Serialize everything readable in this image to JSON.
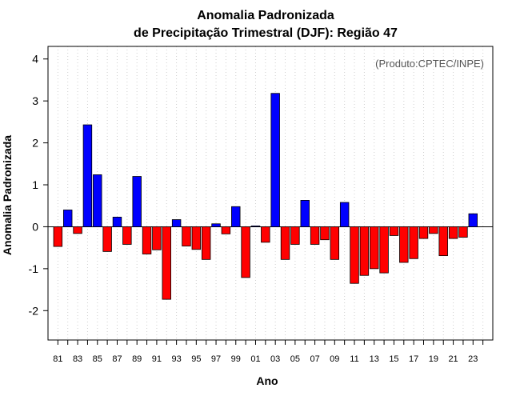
{
  "chart_data": {
    "type": "bar",
    "title": [
      "Anomalia Padronizada",
      "de Precipitação Trimestral (DJF): Região 47"
    ],
    "xlabel": "Ano",
    "ylabel": "Anomalia Padronizada",
    "annotation": "(Produto:CPTEC/INPE)",
    "ylim": [
      -2.7,
      4.3
    ],
    "yticks": [
      -2,
      -1,
      0,
      1,
      2,
      3,
      4
    ],
    "xlim": [
      1980,
      2025
    ],
    "x_tick_labels": [
      {
        "year": 1981,
        "label": "81"
      },
      {
        "year": 1983,
        "label": "83"
      },
      {
        "year": 1985,
        "label": "85"
      },
      {
        "year": 1987,
        "label": "87"
      },
      {
        "year": 1989,
        "label": "89"
      },
      {
        "year": 1991,
        "label": "91"
      },
      {
        "year": 1993,
        "label": "93"
      },
      {
        "year": 1995,
        "label": "95"
      },
      {
        "year": 1997,
        "label": "97"
      },
      {
        "year": 1999,
        "label": "99"
      },
      {
        "year": 2001,
        "label": "01"
      },
      {
        "year": 2003,
        "label": "03"
      },
      {
        "year": 2005,
        "label": "05"
      },
      {
        "year": 2007,
        "label": "07"
      },
      {
        "year": 2009,
        "label": "09"
      },
      {
        "year": 2011,
        "label": "11"
      },
      {
        "year": 2013,
        "label": "13"
      },
      {
        "year": 2015,
        "label": "15"
      },
      {
        "year": 2017,
        "label": "17"
      },
      {
        "year": 2019,
        "label": "19"
      },
      {
        "year": 2021,
        "label": "21"
      },
      {
        "year": 2023,
        "label": "23"
      }
    ],
    "x": [
      1981,
      1982,
      1983,
      1984,
      1985,
      1986,
      1987,
      1988,
      1989,
      1990,
      1991,
      1992,
      1993,
      1994,
      1995,
      1996,
      1997,
      1998,
      1999,
      2000,
      2001,
      2002,
      2003,
      2004,
      2005,
      2006,
      2007,
      2008,
      2009,
      2010,
      2011,
      2012,
      2013,
      2014,
      2015,
      2016,
      2017,
      2018,
      2019,
      2020,
      2021,
      2022,
      2023
    ],
    "values": [
      -0.47,
      0.4,
      -0.16,
      2.43,
      1.24,
      -0.59,
      0.23,
      -0.42,
      1.2,
      -0.65,
      -0.55,
      -1.73,
      0.17,
      -0.46,
      -0.54,
      -0.78,
      0.07,
      -0.17,
      0.48,
      -1.21,
      0.02,
      -0.37,
      3.18,
      -0.78,
      -0.42,
      0.63,
      -0.42,
      -0.31,
      -0.78,
      0.58,
      -1.35,
      -1.16,
      -1.0,
      -1.1,
      -0.21,
      -0.85,
      -0.76,
      -0.28,
      -0.16,
      -0.69,
      -0.28,
      -0.25,
      0.31
    ],
    "colors": {
      "positive": "#0000ff",
      "negative": "#ff0000",
      "bar_edge": "#000000",
      "zero_line": "#000000",
      "grid": "#cfcfcf"
    },
    "grid": "vertical dotted"
  }
}
